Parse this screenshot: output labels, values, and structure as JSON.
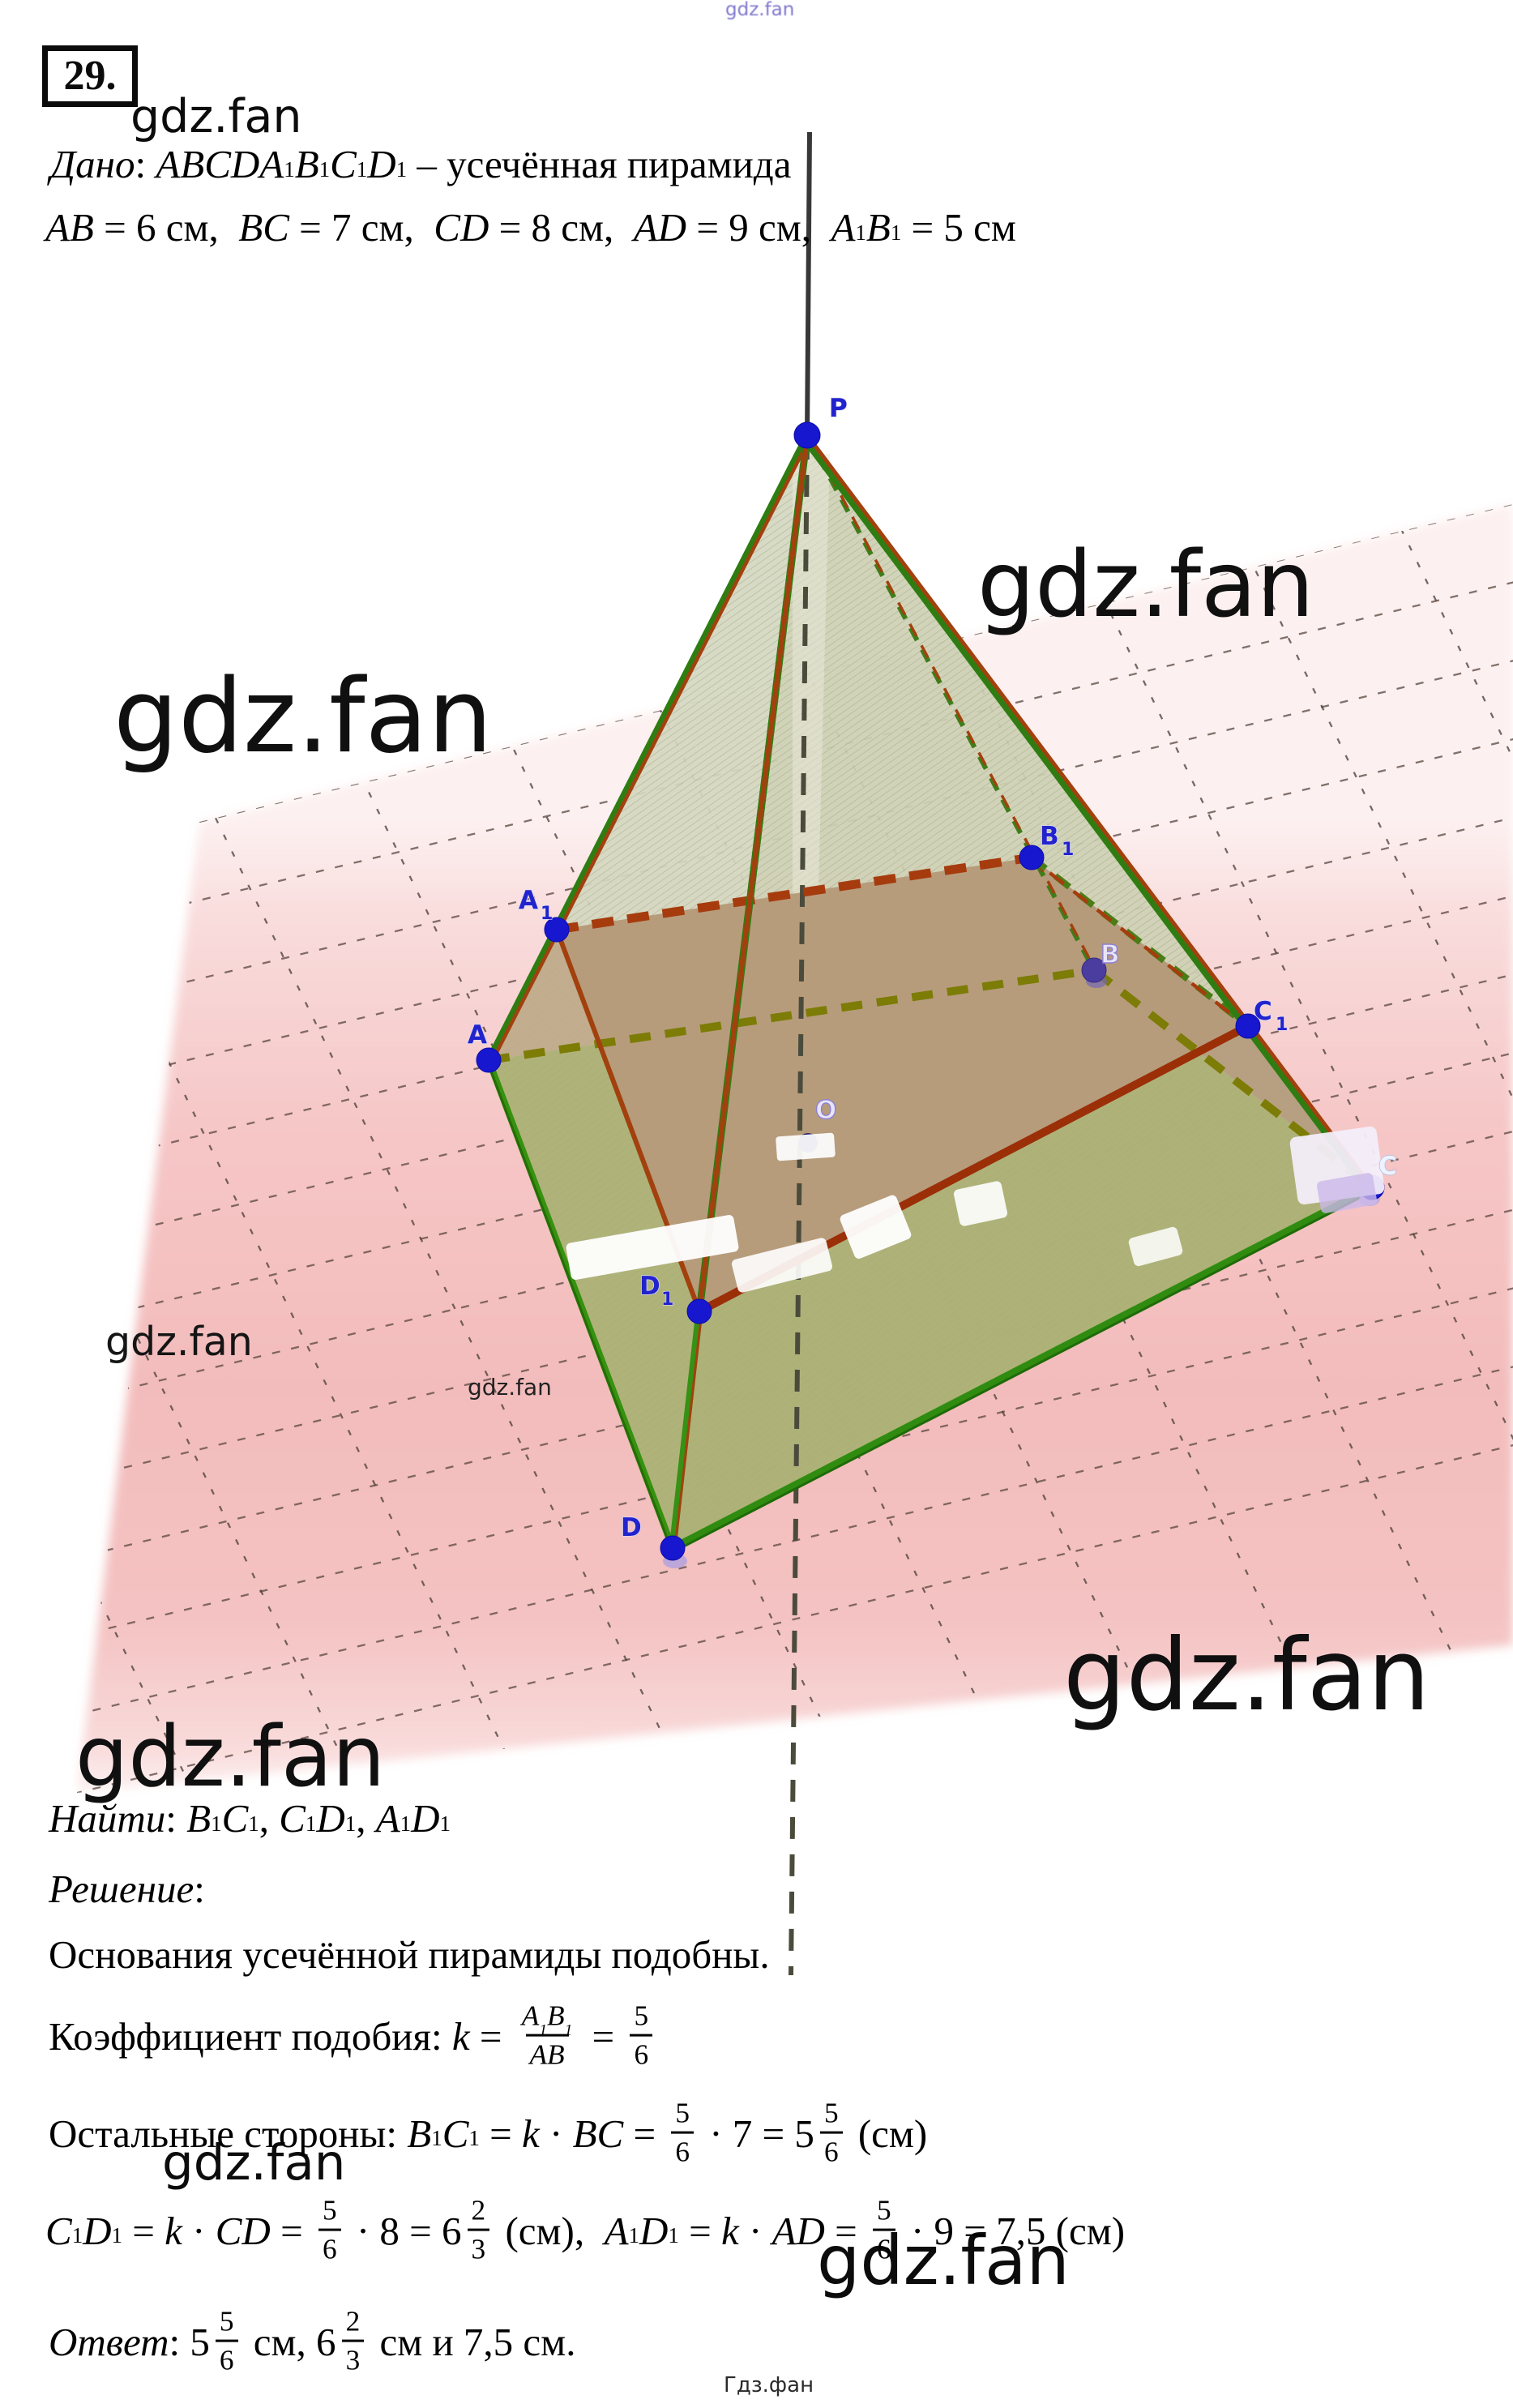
{
  "header": {
    "problem_number": "29.",
    "given_line": [
      {
        "s": "Дано",
        "st": "i"
      },
      {
        "s": ": ",
        "st": "r"
      },
      {
        "s": "ABCDA_1B_1C_1D_1",
        "st": "m"
      },
      {
        "s": " – усечённая пирамида",
        "st": "r"
      }
    ],
    "dims_line": [
      {
        "s": "AB",
        "st": "m"
      },
      {
        "s": " = 6 см,  ",
        "st": "r"
      },
      {
        "s": "BC",
        "st": "m"
      },
      {
        "s": " = 7 см,  ",
        "st": "r"
      },
      {
        "s": "CD",
        "st": "m"
      },
      {
        "s": " = 8 см,  ",
        "st": "r"
      },
      {
        "s": "AD",
        "st": "m"
      },
      {
        "s": " = 9 см,  ",
        "st": "r"
      },
      {
        "s": "A_1B_1",
        "st": "m"
      },
      {
        "s": " = 5 см",
        "st": "r"
      }
    ]
  },
  "solution": {
    "find_line": [
      {
        "s": "Найти",
        "st": "i"
      },
      {
        "s": ": ",
        "st": "r"
      },
      {
        "s": "B_1C_1",
        "st": "m"
      },
      {
        "s": ", ",
        "st": "r"
      },
      {
        "s": "C_1D_1",
        "st": "m"
      },
      {
        "s": ", ",
        "st": "r"
      },
      {
        "s": "A_1D_1",
        "st": "m"
      }
    ],
    "solution_label": [
      {
        "s": "Решение",
        "st": "i"
      },
      {
        "s": ":",
        "st": "r"
      }
    ],
    "similar_line": [
      {
        "s": "Основания усечённой пирамиды подобны.",
        "st": "r"
      }
    ],
    "coef_line": [
      {
        "s": "Коэффициент подобия: ",
        "st": "r"
      },
      {
        "s": "k",
        "st": "m"
      },
      {
        "s": " = ",
        "st": "r"
      },
      {
        "fr": {
          "n": "A_1B_1",
          "d": "AB",
          "st": "m"
        }
      },
      {
        "s": " = ",
        "st": "r"
      },
      {
        "fr": {
          "n": "5",
          "d": "6"
        }
      }
    ],
    "sides_line": [
      {
        "s": "Остальные стороны: ",
        "st": "r"
      },
      {
        "s": "B_1C_1",
        "st": "m"
      },
      {
        "s": " = ",
        "st": "r"
      },
      {
        "s": "k",
        "st": "m"
      },
      {
        "s": " · ",
        "st": "r"
      },
      {
        "s": "BC",
        "st": "m"
      },
      {
        "s": " = ",
        "st": "r"
      },
      {
        "fr": {
          "n": "5",
          "d": "6"
        }
      },
      {
        "s": " · 7 = 5",
        "st": "r"
      },
      {
        "fr": {
          "n": "5",
          "d": "6"
        }
      },
      {
        "s": " (см)",
        "st": "r"
      }
    ],
    "cd_line": [
      {
        "s": "C_1D_1",
        "st": "m"
      },
      {
        "s": " = ",
        "st": "r"
      },
      {
        "s": "k",
        "st": "m"
      },
      {
        "s": " · ",
        "st": "r"
      },
      {
        "s": "CD",
        "st": "m"
      },
      {
        "s": " = ",
        "st": "r"
      },
      {
        "fr": {
          "n": "5",
          "d": "6"
        }
      },
      {
        "s": " · 8 = 6",
        "st": "r"
      },
      {
        "fr": {
          "n": "2",
          "d": "3"
        }
      },
      {
        "s": " (см),  ",
        "st": "r"
      },
      {
        "s": "A_1D_1",
        "st": "m"
      },
      {
        "s": " = ",
        "st": "r"
      },
      {
        "s": "k",
        "st": "m"
      },
      {
        "s": " · ",
        "st": "r"
      },
      {
        "s": "AD",
        "st": "m"
      },
      {
        "s": " = ",
        "st": "r"
      },
      {
        "fr": {
          "n": "5",
          "d": "6"
        }
      },
      {
        "s": " · 9 = 7,5 (см)",
        "st": "r"
      }
    ],
    "answer_line": [
      {
        "s": "Ответ",
        "st": "i"
      },
      {
        "s": ": 5",
        "st": "r"
      },
      {
        "fr": {
          "n": "5",
          "d": "6"
        }
      },
      {
        "s": " см, 6",
        "st": "r"
      },
      {
        "fr": {
          "n": "2",
          "d": "3"
        }
      },
      {
        "s": " см и 7,5 см.",
        "st": "r"
      }
    ]
  },
  "watermark": {
    "text": "gdz.fan"
  },
  "footer": {
    "text": "Гдз.фан"
  },
  "figure": {
    "labels": {
      "p": {
        "main": "P"
      },
      "a1": {
        "main": "A",
        "sub": "1"
      },
      "a": {
        "main": "A"
      },
      "b1": {
        "main": "B",
        "sub": "1"
      },
      "b": {
        "main": "B"
      },
      "c1": {
        "main": "C",
        "sub": "1"
      },
      "c": {
        "main": "C"
      },
      "d1": {
        "main": "D",
        "sub": "1"
      },
      "d": {
        "main": "D"
      },
      "o": {
        "main": "O"
      }
    },
    "colors": {
      "plane_pink": "#f5c2c2",
      "face_sage": "#d4d7bf",
      "base_olive": "#a8ad6d",
      "cut_brown": "#b69b7b",
      "edge_red": "#a2410e",
      "edge_green": "#2f7d12",
      "olive_dash": "#7c7c06",
      "point_blue": "#1717cf",
      "label_blue": "#2323cd",
      "grid_line": "#5c4a44"
    }
  }
}
